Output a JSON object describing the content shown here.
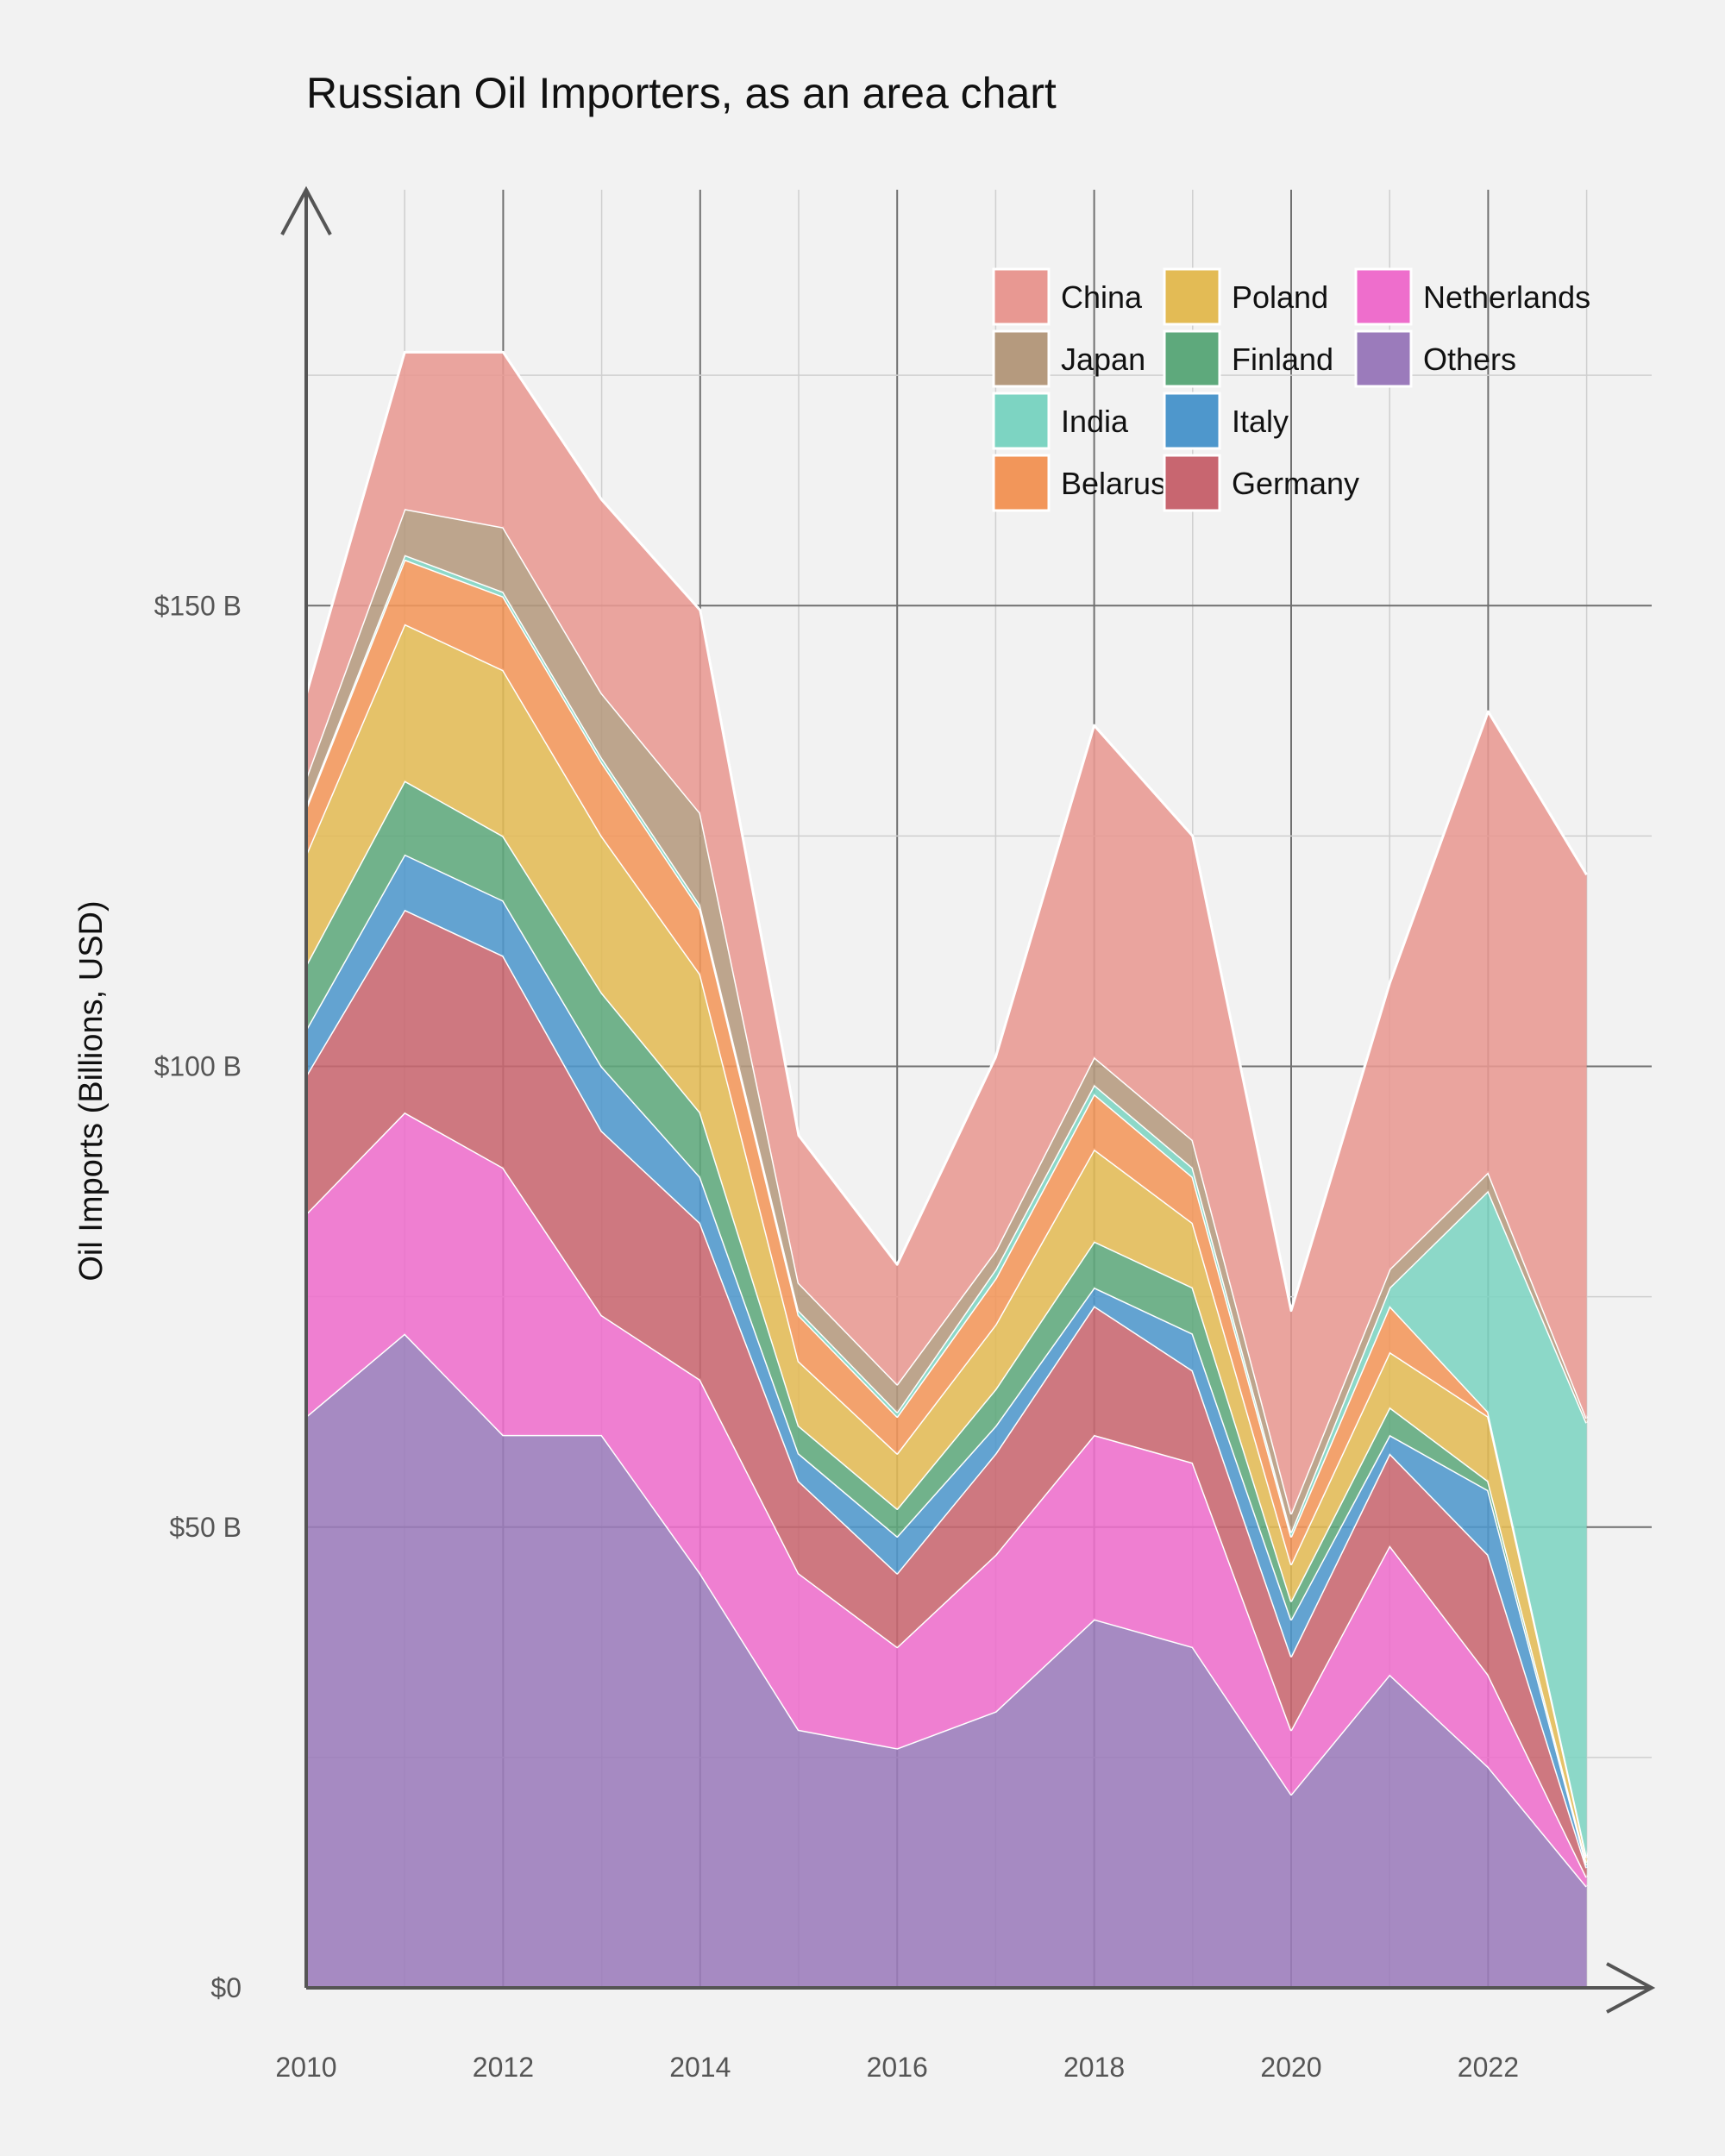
{
  "chart_data": {
    "type": "area",
    "stacked": true,
    "title": "Russian Oil Importers, as an area chart",
    "xlabel": "",
    "ylabel": "Oil Imports (Billions, USD)",
    "x": [
      2010,
      2011,
      2012,
      2013,
      2014,
      2015,
      2016,
      2017,
      2018,
      2019,
      2020,
      2021,
      2022,
      2023
    ],
    "x_ticks": [
      "2010",
      "2012",
      "2014",
      "2016",
      "2018",
      "2020",
      "2022"
    ],
    "y_ticks": [
      {
        "value": 0,
        "label": "$0"
      },
      {
        "value": 50,
        "label": "$50 B"
      },
      {
        "value": 100,
        "label": "$100 B"
      },
      {
        "value": 150,
        "label": "$150 B"
      }
    ],
    "ylim": [
      0,
      195
    ],
    "xlim": [
      2010,
      2023.7
    ],
    "grid": true,
    "legend_position": "top-right",
    "series": [
      {
        "name": "Others",
        "color": "#9b7bbb",
        "values": [
          62,
          71,
          60,
          60,
          45,
          28,
          26,
          30,
          40,
          37,
          21,
          34,
          24,
          11
        ]
      },
      {
        "name": "Netherlands",
        "color": "#ee6ecc",
        "values": [
          22,
          24,
          29,
          13,
          21,
          17,
          11,
          17,
          20,
          20,
          7,
          14,
          10,
          1
        ]
      },
      {
        "name": "Germany",
        "color": "#c86670",
        "values": [
          15,
          22,
          23,
          20,
          17,
          10,
          8,
          11,
          14,
          10,
          8,
          10,
          13,
          1
        ]
      },
      {
        "name": "Italy",
        "color": "#4e97cc",
        "values": [
          5,
          6,
          6,
          7,
          5,
          3,
          4,
          3,
          2,
          4,
          4,
          2,
          7,
          0.3
        ]
      },
      {
        "name": "Finland",
        "color": "#5ea97c",
        "values": [
          7,
          8,
          7,
          8,
          7,
          3,
          3,
          4,
          5,
          5,
          2,
          3,
          1,
          0.3
        ]
      },
      {
        "name": "Poland",
        "color": "#e3bb55",
        "values": [
          12,
          17,
          18,
          17,
          15,
          7,
          6,
          7,
          10,
          7,
          4,
          6,
          7,
          0.5
        ]
      },
      {
        "name": "Belarus",
        "color": "#f2965a",
        "values": [
          5,
          7,
          8,
          8,
          7,
          5,
          4,
          5,
          6,
          5,
          3,
          5,
          0.5,
          0.2
        ]
      },
      {
        "name": "India",
        "color": "#7dd4c2",
        "values": [
          0.3,
          0.5,
          0.5,
          0.5,
          0.5,
          0.5,
          0.5,
          1,
          1,
          1,
          0.5,
          2,
          24,
          47
        ]
      },
      {
        "name": "Japan",
        "color": "#b59a7e",
        "values": [
          3,
          5,
          7,
          7,
          10,
          3,
          3,
          2,
          3,
          3,
          2,
          2,
          2,
          0.5
        ]
      },
      {
        "name": "China",
        "color": "#e89892",
        "values": [
          9,
          17,
          19,
          21,
          22,
          16,
          13,
          21,
          36,
          33,
          22,
          31,
          50,
          59
        ]
      }
    ],
    "legend_order": [
      "China",
      "Japan",
      "India",
      "Belarus",
      "Poland",
      "Finland",
      "Italy",
      "Germany",
      "Netherlands",
      "Others"
    ]
  }
}
